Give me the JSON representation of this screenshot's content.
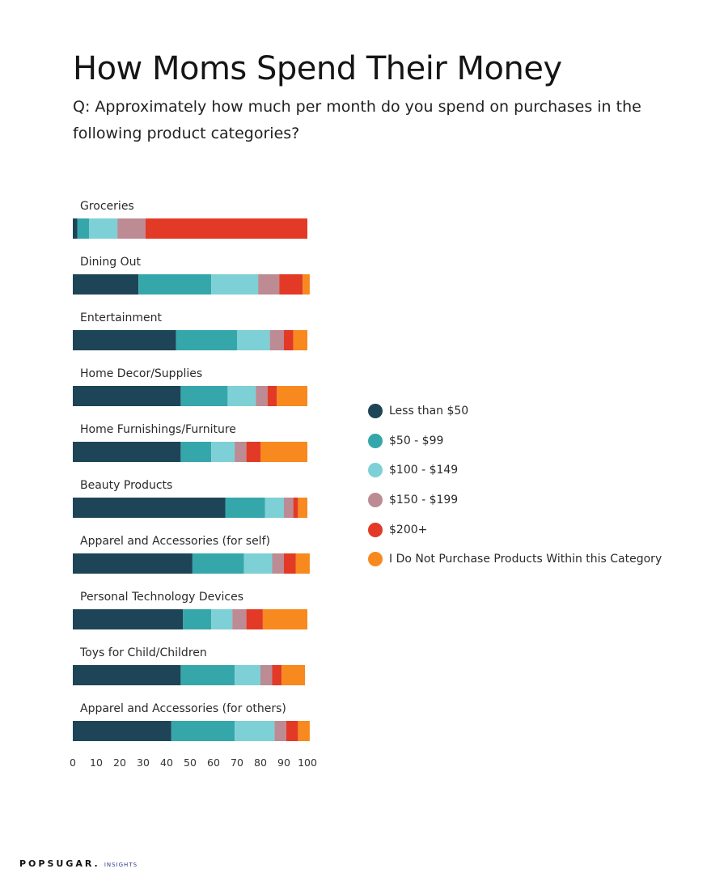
{
  "chart_data": {
    "type": "bar",
    "orientation": "horizontal",
    "stacked": true,
    "title": "How Moms Spend Their Money",
    "subtitle": "Q: Approximately how much per month do you spend on purchases in the following product categories?",
    "categories": [
      "Groceries",
      "Dining Out",
      "Entertainment",
      "Home Decor/Supplies",
      "Home Furnishings/Furniture",
      "Beauty Products",
      "Apparel and Accessories (for self)",
      "Personal Technology Devices",
      "Toys for Child/Children",
      "Apparel and Accessories (for others)"
    ],
    "series": [
      {
        "name": "Less than $50",
        "color": "#1e4557",
        "values": [
          2,
          28,
          44,
          46,
          46,
          65,
          51,
          47,
          46,
          42
        ]
      },
      {
        "name": "$50 - $99",
        "color": "#35a7ab",
        "values": [
          5,
          31,
          26,
          20,
          13,
          17,
          22,
          12,
          23,
          27
        ]
      },
      {
        "name": "$100 - $149",
        "color": "#7dd0d6",
        "values": [
          12,
          20,
          14,
          12,
          10,
          8,
          12,
          9,
          11,
          17
        ]
      },
      {
        "name": "$150 - $199",
        "color": "#bc8b93",
        "values": [
          12,
          9,
          6,
          5,
          5,
          4,
          5,
          6,
          5,
          5
        ]
      },
      {
        "name": "$200+",
        "color": "#e23a26",
        "values": [
          69,
          10,
          4,
          4,
          6,
          2,
          5,
          7,
          4,
          5
        ]
      },
      {
        "name": "I Do Not Purchase Products Within this Category",
        "color": "#f7891f",
        "values": [
          0,
          3,
          6,
          13,
          20,
          4,
          6,
          19,
          10,
          5
        ]
      }
    ],
    "xlim": [
      0,
      100
    ],
    "xticks": [
      "0",
      "10",
      "20",
      "30",
      "40",
      "50",
      "60",
      "70",
      "80",
      "90",
      "100"
    ],
    "grid": false,
    "legend_position": "right"
  },
  "brand": {
    "name": "POPSUGAR.",
    "sub": "INSIGHTS"
  }
}
